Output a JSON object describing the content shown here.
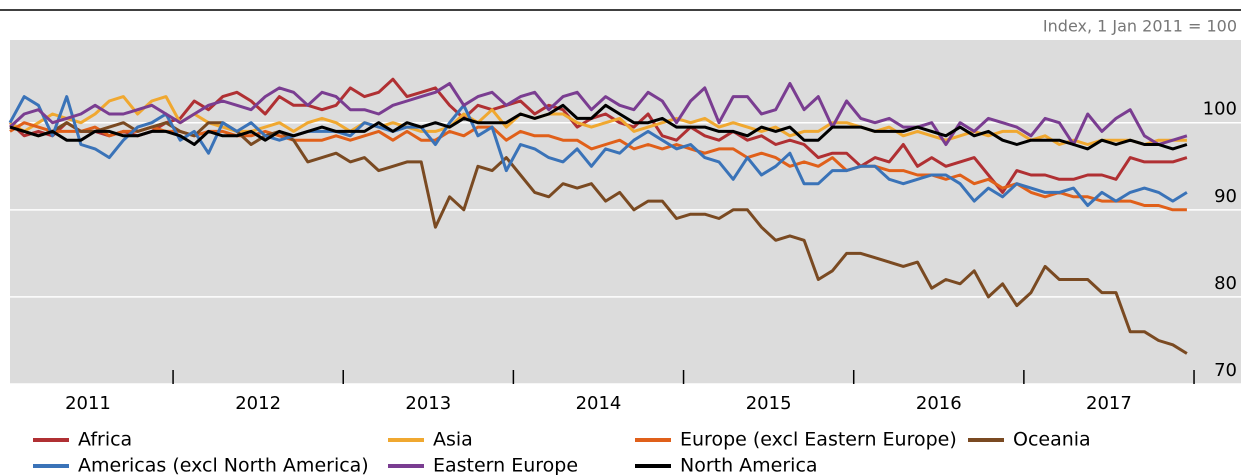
{
  "chart_data": {
    "type": "line",
    "subtitle": "Index, 1 Jan 2011 = 100",
    "categories": [
      null,
      null,
      null,
      null,
      null,
      "2011",
      null,
      null,
      null,
      null,
      null,
      null,
      null,
      null,
      null,
      null,
      null,
      "2012",
      null,
      null,
      null,
      null,
      null,
      null,
      null,
      null,
      null,
      null,
      null,
      "2013",
      null,
      null,
      null,
      null,
      null,
      null,
      null,
      null,
      null,
      null,
      null,
      "2014",
      null,
      null,
      null,
      null,
      null,
      null,
      null,
      null,
      null,
      null,
      null,
      "2015",
      null,
      null,
      null,
      null,
      null,
      null,
      null,
      null,
      null,
      null,
      null,
      "2016",
      null,
      null,
      null,
      null,
      null,
      null,
      null,
      null,
      null,
      null,
      null,
      "2017",
      null,
      null,
      null,
      null,
      null,
      null
    ],
    "ylim": [
      70,
      109.5
    ],
    "yticks": [
      70,
      80,
      90,
      100
    ],
    "grid": true,
    "series": [
      {
        "name": "Africa",
        "color": "#b03033",
        "values": [
          100,
          98.5,
          99,
          98.5,
          100,
          99,
          99,
          98.5,
          99,
          98.5,
          99,
          100,
          100.5,
          102.5,
          101.5,
          103,
          103.5,
          102.5,
          101,
          103,
          102,
          102,
          101.5,
          102,
          104,
          103,
          103.5,
          105,
          103,
          103.5,
          104,
          102,
          100.5,
          102,
          101.5,
          102,
          102.5,
          101,
          102,
          101.5,
          99.5,
          100.5,
          101,
          100,
          99.5,
          101,
          98.5,
          98,
          99.5,
          98.5,
          98,
          99,
          98,
          98.5,
          97.5,
          98,
          97.5,
          96,
          96.5,
          96.5,
          95,
          96,
          95.5,
          97.5,
          95,
          96,
          95,
          95.5,
          96,
          94,
          92,
          94.5,
          94,
          94,
          93.5,
          93.5,
          94,
          94,
          93.5,
          96,
          95.5,
          95.5,
          95.5,
          96
        ]
      },
      {
        "name": "Asia",
        "color": "#f0a830",
        "values": [
          100,
          99,
          100,
          101,
          100.5,
          100,
          101,
          102.5,
          103,
          101,
          102.5,
          103,
          100,
          101,
          100,
          99.5,
          99,
          99,
          99.5,
          100,
          99,
          100,
          100.5,
          100,
          99,
          100,
          99.5,
          100,
          99.5,
          99,
          99,
          99.5,
          101,
          100,
          101.5,
          99.5,
          101,
          100.5,
          101,
          101,
          100,
          99.5,
          100,
          100.5,
          99,
          99.5,
          100,
          100.5,
          100,
          100.5,
          99.5,
          100,
          99.5,
          99,
          99.5,
          98.5,
          99,
          99,
          100,
          100,
          99.5,
          99,
          99.5,
          98.5,
          99,
          98.5,
          98,
          98.5,
          99,
          98.5,
          99,
          99,
          98,
          98.5,
          97.5,
          98,
          97.5,
          98,
          98,
          98,
          97.5,
          98,
          98,
          98
        ]
      },
      {
        "name": "Europe (excl Eastern Europe)",
        "color": "#e0601a",
        "values": [
          99,
          100,
          99.5,
          99,
          99,
          99,
          99.5,
          98.5,
          99,
          99,
          99.5,
          99,
          99,
          98.5,
          99,
          99,
          98.5,
          98.5,
          99,
          98.5,
          98,
          98,
          98,
          98.5,
          98,
          98.5,
          99,
          98,
          99,
          98,
          98,
          99,
          98.5,
          99.5,
          99.5,
          98,
          99,
          98.5,
          98.5,
          98,
          98,
          97,
          97.5,
          98,
          97,
          97.5,
          97,
          97.5,
          97,
          96.5,
          97,
          97,
          96,
          96.5,
          96,
          95,
          95.5,
          95,
          96,
          94.5,
          95,
          95,
          94.5,
          94.5,
          94,
          94,
          93.5,
          94,
          93,
          93.5,
          92.5,
          93,
          92,
          91.5,
          92,
          91.5,
          91.5,
          91,
          91,
          91,
          90.5,
          90.5,
          90,
          90
        ]
      },
      {
        "name": "Oceania",
        "color": "#7a4a22",
        "values": [
          99.5,
          99,
          98.5,
          99,
          100,
          99,
          99,
          99.5,
          100,
          99,
          99.5,
          100,
          99,
          98.5,
          100,
          100,
          99,
          97.5,
          98.5,
          99,
          98,
          95.5,
          96,
          96.5,
          95.5,
          96,
          94.5,
          95,
          95.5,
          95.5,
          88,
          91.5,
          90,
          95,
          94.5,
          96,
          94,
          92,
          91.5,
          93,
          92.5,
          93,
          91,
          92,
          90,
          91,
          91,
          89,
          89.5,
          89.5,
          89,
          90,
          90,
          88,
          86.5,
          87,
          86.5,
          82,
          83,
          85,
          85,
          84.5,
          84,
          83.5,
          84,
          81,
          82,
          81.5,
          83,
          80,
          81.5,
          79,
          80.5,
          83.5,
          82,
          82,
          82,
          80.5,
          80.5,
          76,
          76,
          75,
          74.5,
          73.5
        ]
      },
      {
        "name": "Americas (excl North America)",
        "color": "#3a73b8",
        "values": [
          100,
          103,
          102,
          98.5,
          103,
          97.5,
          97,
          96,
          98,
          99.5,
          100,
          101,
          98,
          99,
          96.5,
          100,
          99,
          100,
          98.5,
          98,
          98.5,
          99,
          99,
          99,
          98.5,
          100,
          99.5,
          99,
          99.5,
          99.5,
          97.5,
          100,
          102,
          98.5,
          99.5,
          94.5,
          97.5,
          97,
          96,
          95.5,
          97,
          95,
          97,
          96.5,
          98,
          99,
          98,
          97,
          97.5,
          96,
          95.5,
          93.5,
          96,
          94,
          95,
          96.5,
          93,
          93,
          94.5,
          94.5,
          95,
          95,
          93.5,
          93,
          93.5,
          94,
          94,
          93,
          91,
          92.5,
          91.5,
          93,
          92.5,
          92,
          92,
          92.5,
          90.5,
          92,
          91,
          92,
          92.5,
          92,
          91,
          92
        ]
      },
      {
        "name": "Eastern Europe",
        "color": "#7a3d91",
        "values": [
          99.5,
          101,
          101.5,
          100,
          100.5,
          101,
          102,
          101,
          101,
          101.5,
          102,
          101,
          100,
          101,
          102,
          102.5,
          102,
          101.5,
          103,
          104,
          103.5,
          102,
          103.5,
          103,
          101.5,
          101.5,
          101,
          102,
          102.5,
          103,
          103.5,
          104.5,
          102,
          103,
          103.5,
          102,
          103,
          103.5,
          101.5,
          103,
          103.5,
          101.5,
          103,
          102,
          101.5,
          103.5,
          102.5,
          100,
          102.5,
          104,
          100,
          103,
          103,
          101,
          101.5,
          104.5,
          101.5,
          103,
          99.5,
          102.5,
          100.5,
          100,
          100.5,
          99.5,
          99.5,
          100,
          97.5,
          100,
          99,
          100.5,
          100,
          99.5,
          98.5,
          100.5,
          100,
          97.5,
          101,
          99,
          100.5,
          101.5,
          98.5,
          97.5,
          98,
          98.5
        ]
      },
      {
        "name": "North America",
        "color": "#000000",
        "values": [
          99.5,
          99,
          98.5,
          99,
          98,
          98,
          99,
          99,
          98.5,
          98.5,
          99,
          99,
          98.5,
          97.5,
          99,
          98.5,
          98.5,
          99,
          98,
          99,
          98.5,
          99,
          99.5,
          99,
          99,
          99,
          100,
          99,
          100,
          99.5,
          100,
          99.5,
          100.5,
          100,
          100,
          100,
          101,
          100.5,
          101,
          102,
          100.5,
          100.5,
          102,
          101,
          100,
          100,
          100.5,
          99.5,
          99.5,
          99.5,
          99,
          99,
          98.5,
          99.5,
          99,
          99.5,
          98,
          98,
          99.5,
          99.5,
          99.5,
          99,
          99,
          99,
          99.5,
          99,
          98.5,
          99.5,
          98.5,
          99,
          98,
          97.5,
          98,
          98,
          98,
          97.5,
          97,
          98,
          97.5,
          98,
          97.5,
          97.5,
          97,
          97.5
        ]
      }
    ]
  }
}
